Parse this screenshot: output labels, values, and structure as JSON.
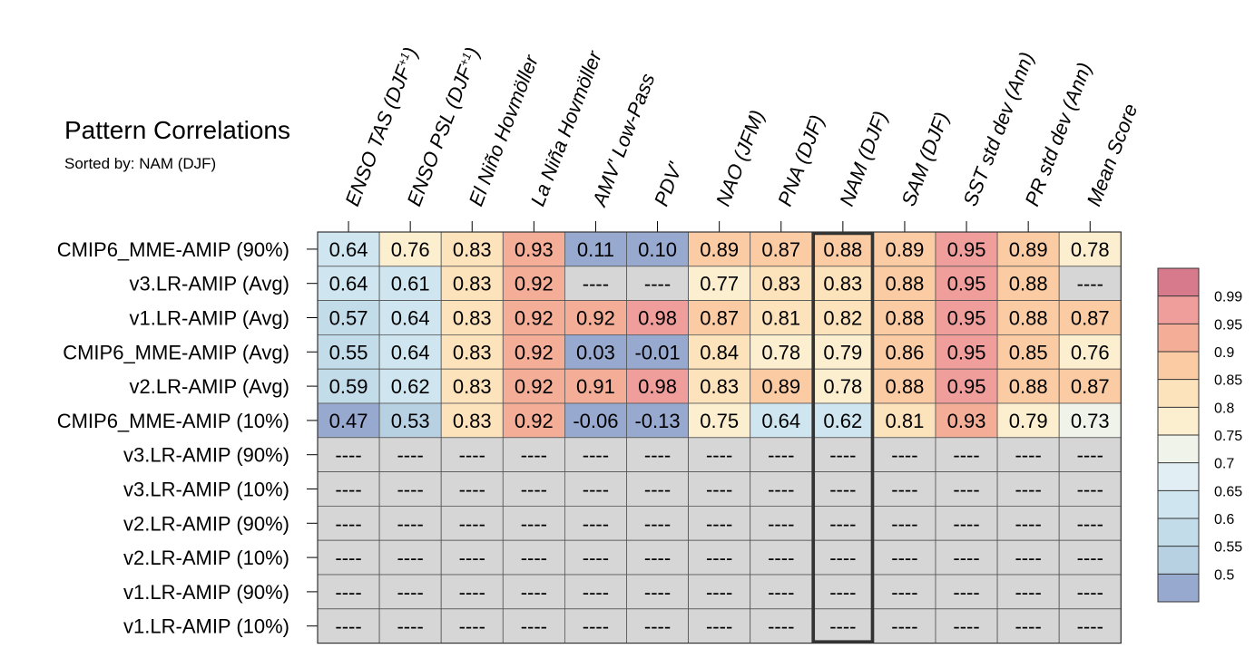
{
  "title": "Pattern Correlations",
  "subtitle": "Sorted by: NAM (DJF)",
  "missing_text": "----",
  "chart_data": {
    "type": "heatmap",
    "columns": [
      {
        "text": "ENSO TAS (DJF",
        "sup": "+1",
        "tail": ")"
      },
      {
        "text": "ENSO PSL (DJF",
        "sup": "+1",
        "tail": ")"
      },
      {
        "text": "El Niño Hovmöller"
      },
      {
        "text": "La Niña Hovmöller"
      },
      {
        "text": "AMV' Low-Pass"
      },
      {
        "text": "PDV'"
      },
      {
        "text": "NAO (JFM)"
      },
      {
        "text": "PNA (DJF)"
      },
      {
        "text": "NAM (DJF)"
      },
      {
        "text": "SAM (DJF)"
      },
      {
        "text": "SST std dev (Ann)"
      },
      {
        "text": "PR std dev (Ann)"
      },
      {
        "text": "Mean Score"
      }
    ],
    "rows": [
      "CMIP6_MME-AMIP (90%)",
      "v3.LR-AMIP (Avg)",
      "v1.LR-AMIP (Avg)",
      "CMIP6_MME-AMIP (Avg)",
      "v2.LR-AMIP (Avg)",
      "CMIP6_MME-AMIP (10%)",
      "v3.LR-AMIP (90%)",
      "v3.LR-AMIP (10%)",
      "v2.LR-AMIP (90%)",
      "v2.LR-AMIP (10%)",
      "v1.LR-AMIP (90%)",
      "v1.LR-AMIP (10%)"
    ],
    "values": [
      [
        "0.64",
        "0.76",
        "0.83",
        "0.93",
        "0.11",
        "0.10",
        "0.89",
        "0.87",
        "0.88",
        "0.89",
        "0.95",
        "0.89",
        "0.78"
      ],
      [
        "0.64",
        "0.61",
        "0.83",
        "0.92",
        null,
        null,
        "0.77",
        "0.83",
        "0.83",
        "0.88",
        "0.95",
        "0.88",
        null
      ],
      [
        "0.57",
        "0.64",
        "0.83",
        "0.92",
        "0.92",
        "0.98",
        "0.87",
        "0.81",
        "0.82",
        "0.88",
        "0.95",
        "0.88",
        "0.87"
      ],
      [
        "0.55",
        "0.64",
        "0.83",
        "0.92",
        "0.03",
        "-0.01",
        "0.84",
        "0.78",
        "0.79",
        "0.86",
        "0.95",
        "0.85",
        "0.76"
      ],
      [
        "0.59",
        "0.62",
        "0.83",
        "0.92",
        "0.91",
        "0.98",
        "0.83",
        "0.89",
        "0.78",
        "0.88",
        "0.95",
        "0.88",
        "0.87"
      ],
      [
        "0.47",
        "0.53",
        "0.83",
        "0.92",
        "-0.06",
        "-0.13",
        "0.75",
        "0.64",
        "0.62",
        "0.81",
        "0.93",
        "0.79",
        "0.73"
      ],
      [
        null,
        null,
        null,
        null,
        null,
        null,
        null,
        null,
        null,
        null,
        null,
        null,
        null
      ],
      [
        null,
        null,
        null,
        null,
        null,
        null,
        null,
        null,
        null,
        null,
        null,
        null,
        null
      ],
      [
        null,
        null,
        null,
        null,
        null,
        null,
        null,
        null,
        null,
        null,
        null,
        null,
        null
      ],
      [
        null,
        null,
        null,
        null,
        null,
        null,
        null,
        null,
        null,
        null,
        null,
        null,
        null
      ],
      [
        null,
        null,
        null,
        null,
        null,
        null,
        null,
        null,
        null,
        null,
        null,
        null,
        null
      ],
      [
        null,
        null,
        null,
        null,
        null,
        null,
        null,
        null,
        null,
        null,
        null,
        null,
        null
      ]
    ],
    "highlighted_column": "NAM (DJF)",
    "colorbar": {
      "levels": [
        0.5,
        0.55,
        0.6,
        0.65,
        0.7,
        0.75,
        0.8,
        0.85,
        0.9,
        0.95,
        0.99
      ],
      "tick_labels": [
        "0.5",
        "0.55",
        "0.6",
        "0.65",
        "0.7",
        "0.75",
        "0.8",
        "0.85",
        "0.9",
        "0.95",
        "0.99"
      ],
      "colors": [
        "#98a9d0",
        "#b7d0e2",
        "#c2dcea",
        "#cfe5f0",
        "#e1eff5",
        "#eff3ea",
        "#fcefd0",
        "#fde3bb",
        "#fbcca4",
        "#f4ae97",
        "#f09e9b",
        "#d77a8b"
      ],
      "missing_color": "#d6d6d6"
    }
  }
}
